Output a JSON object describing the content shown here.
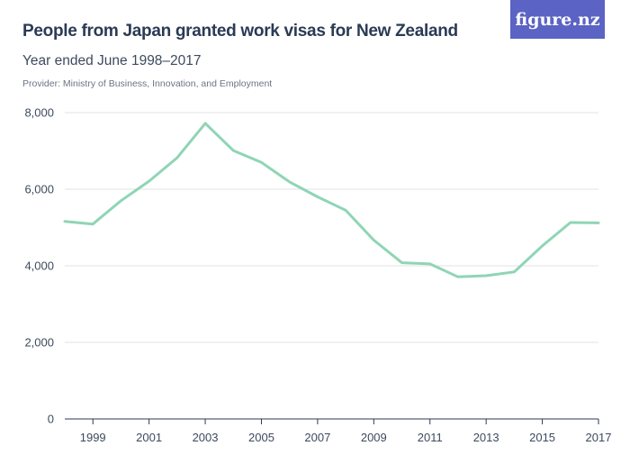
{
  "header": {
    "title": "People from Japan granted work visas for New Zealand",
    "subtitle": "Year ended June 1998–2017",
    "provider": "Provider: Ministry of Business, Innovation, and Employment",
    "logo_text": "figure.nz"
  },
  "colors": {
    "line": "#8fd5b5",
    "grid": "#e3e3e3",
    "logo_bg": "#5b63c4"
  },
  "chart_data": {
    "type": "line",
    "x": [
      1998,
      1999,
      2000,
      2001,
      2002,
      2003,
      2004,
      2005,
      2006,
      2007,
      2008,
      2009,
      2010,
      2011,
      2012,
      2013,
      2014,
      2015,
      2016,
      2017
    ],
    "series": [
      {
        "values": [
          5160,
          5090,
          5700,
          6210,
          6820,
          7720,
          7010,
          6700,
          6190,
          5800,
          5450,
          4670,
          4080,
          4050,
          3710,
          3740,
          3840,
          4520,
          5130,
          5120
        ]
      }
    ],
    "x_tick_labels": [
      "1999",
      "2001",
      "2003",
      "2005",
      "2007",
      "2009",
      "2011",
      "2013",
      "2015",
      "2017"
    ],
    "y_ticks": [
      0,
      2000,
      4000,
      6000,
      8000
    ],
    "y_tick_labels": [
      "0",
      "2,000",
      "4,000",
      "6,000",
      "8,000"
    ],
    "ylim": [
      0,
      8000
    ],
    "xlim": [
      1998,
      2017
    ],
    "grid": true,
    "legend": "none"
  }
}
